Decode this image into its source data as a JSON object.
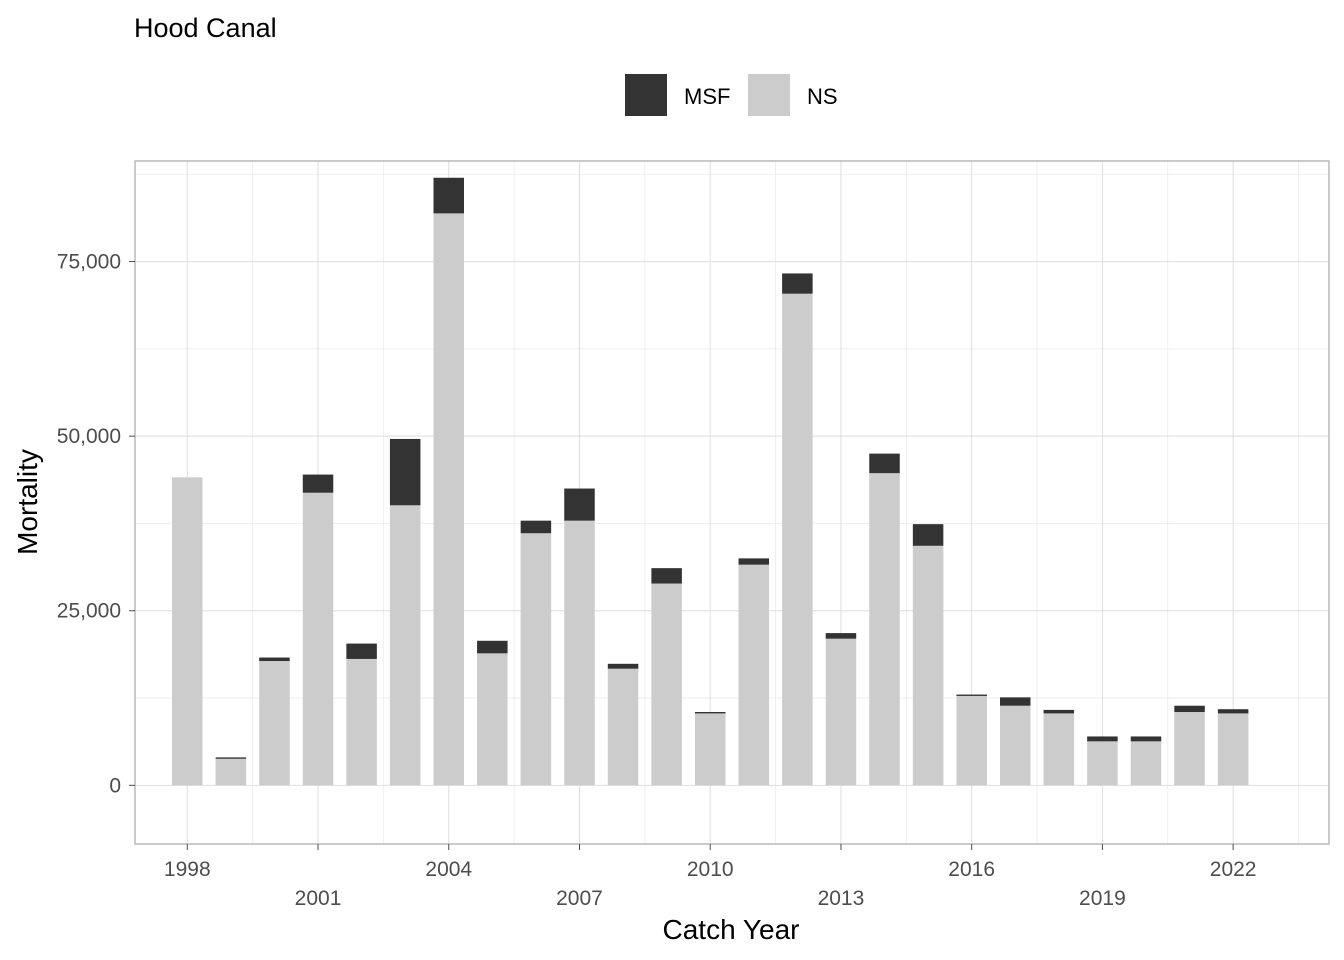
{
  "chart_data": {
    "type": "bar",
    "stacked": true,
    "title": "Hood Canal",
    "xlabel": "Catch Year",
    "ylabel": "Mortality",
    "legend": {
      "position": "top",
      "entries": [
        "MSF",
        "NS"
      ]
    },
    "grid": true,
    "ylim": [
      -8400,
      89400
    ],
    "xlim": [
      1996.8,
      2024.2
    ],
    "y_ticks": [
      {
        "value": 0,
        "label": "0"
      },
      {
        "value": 25000,
        "label": "25,000"
      },
      {
        "value": 50000,
        "label": "50,000"
      },
      {
        "value": 75000,
        "label": "75,000"
      }
    ],
    "x_ticks": [
      {
        "value": 1998,
        "label": "1998",
        "row": 0
      },
      {
        "value": 2001,
        "label": "2001",
        "row": 1
      },
      {
        "value": 2004,
        "label": "2004",
        "row": 0
      },
      {
        "value": 2007,
        "label": "2007",
        "row": 1
      },
      {
        "value": 2010,
        "label": "2010",
        "row": 0
      },
      {
        "value": 2013,
        "label": "2013",
        "row": 1
      },
      {
        "value": 2016,
        "label": "2016",
        "row": 0
      },
      {
        "value": 2019,
        "label": "2019",
        "row": 1
      },
      {
        "value": 2022,
        "label": "2022",
        "row": 0
      }
    ],
    "categories": [
      1998,
      1999,
      2000,
      2001,
      2002,
      2003,
      2004,
      2005,
      2006,
      2007,
      2008,
      2009,
      2010,
      2011,
      2012,
      2013,
      2014,
      2015,
      2016,
      2017,
      2018,
      2019,
      2020,
      2021,
      2022
    ],
    "series": [
      {
        "name": "NS",
        "color": "#cccccc",
        "values": [
          44100,
          3800,
          17800,
          41900,
          18100,
          40100,
          81900,
          18900,
          36100,
          37900,
          16700,
          28900,
          10300,
          31600,
          70400,
          21000,
          44700,
          34300,
          12800,
          11400,
          10300,
          6300,
          6300,
          10500,
          10300
        ]
      },
      {
        "name": "MSF",
        "color": "#333333",
        "values": [
          0,
          200,
          500,
          2600,
          2200,
          9500,
          5100,
          1800,
          1800,
          4600,
          700,
          2200,
          200,
          900,
          2900,
          800,
          2800,
          3100,
          200,
          1200,
          500,
          700,
          700,
          900,
          600
        ]
      }
    ]
  }
}
